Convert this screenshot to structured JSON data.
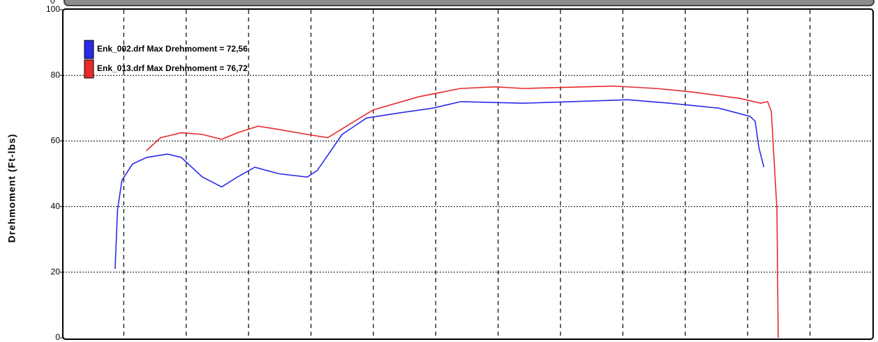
{
  "chart_data": {
    "type": "line",
    "y_label": "Drehmoment (Ft-lbs)",
    "top_label": "0",
    "ylim": [
      0,
      100
    ],
    "yticks": [
      0,
      20,
      40,
      60,
      80,
      100
    ],
    "grid": true,
    "xlim": [
      0,
      13
    ],
    "xgrid": [
      1,
      2,
      3,
      4,
      5,
      6,
      7,
      8,
      9,
      10,
      11,
      12
    ],
    "legend": "upper left",
    "series": [
      {
        "name": "Enk_002.drf Max Drehmoment = 72,56",
        "color": "#2a2ae8",
        "x": [
          0.86,
          0.9,
          0.97,
          1.14,
          1.37,
          1.7,
          1.92,
          2.26,
          2.57,
          2.82,
          3.1,
          3.49,
          3.94,
          4.1,
          4.5,
          4.89,
          5.39,
          5.95,
          6.4,
          7.4,
          8.52,
          9.08,
          9.75,
          10.54,
          11.04,
          11.12,
          11.18,
          11.26
        ],
        "values": [
          21,
          39,
          48,
          53,
          55,
          56,
          55,
          49,
          46,
          49,
          52,
          50,
          49,
          51,
          62,
          67,
          68.5,
          70,
          72,
          71.5,
          72.2,
          72.56,
          71.5,
          70,
          67.5,
          66,
          58,
          52
        ]
      },
      {
        "name": "Enk_013.drf Max Drehmoment = 76,72",
        "color": "#e82a2a",
        "x": [
          1.36,
          1.59,
          1.92,
          2.26,
          2.57,
          2.82,
          3.15,
          3.49,
          3.94,
          4.27,
          4.61,
          5.0,
          5.73,
          6.4,
          6.96,
          7.4,
          8.86,
          9.53,
          10.09,
          10.87,
          11.21,
          11.32,
          11.38,
          11.43,
          11.47,
          11.49
        ],
        "values": [
          57,
          61,
          62.5,
          62,
          60.5,
          62.5,
          64.5,
          63.5,
          62,
          61,
          65,
          69.5,
          73.5,
          76,
          76.5,
          76,
          76.72,
          76,
          75,
          73,
          71.5,
          72,
          69,
          52,
          39,
          0
        ]
      }
    ]
  }
}
